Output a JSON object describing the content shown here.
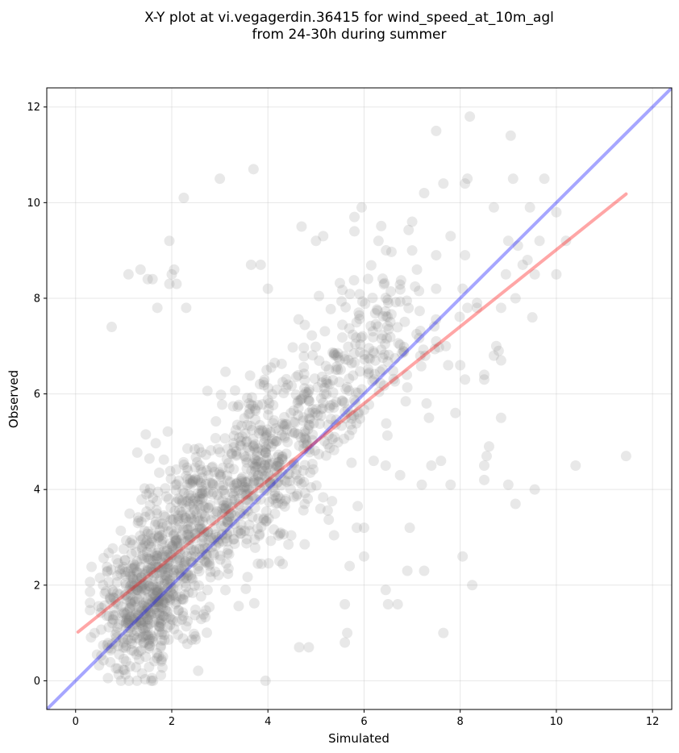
{
  "chart_data": {
    "type": "scatter",
    "title": "X-Y plot at vi.vegagerdin.36415 for wind_speed_at_10m_agl",
    "subtitle": "from 24-30h during summer",
    "xlabel": "Simulated",
    "ylabel": "Observed",
    "xlim": [
      -0.6,
      12.4
    ],
    "ylim": [
      -0.6,
      12.4
    ],
    "xticks": [
      0,
      2,
      4,
      6,
      8,
      10,
      12
    ],
    "yticks": [
      0,
      2,
      4,
      6,
      8,
      10,
      12
    ],
    "grid": true,
    "point_color": "#808080",
    "identity_line": {
      "color": "#0000ff",
      "from": [
        -0.6,
        -0.6
      ],
      "to": [
        12.4,
        12.4
      ]
    },
    "fit_line": {
      "color": "#ff0000",
      "from": [
        0.05,
        1.02
      ],
      "to": [
        11.45,
        10.18
      ]
    },
    "points": [
      [
        11.45,
        4.7
      ],
      [
        10.4,
        4.5
      ],
      [
        9.55,
        4.0
      ],
      [
        9.15,
        3.7
      ],
      [
        8.25,
        2.0
      ],
      [
        8.05,
        2.6
      ],
      [
        7.65,
        1.0
      ],
      [
        6.95,
        3.2
      ],
      [
        7.6,
        4.6
      ],
      [
        7.8,
        4.1
      ],
      [
        8.5,
        4.2
      ],
      [
        8.55,
        4.7
      ],
      [
        8.6,
        4.9
      ],
      [
        9.0,
        4.1
      ],
      [
        8.5,
        4.5
      ],
      [
        7.4,
        4.5
      ],
      [
        6.7,
        1.6
      ],
      [
        6.5,
        1.6
      ],
      [
        6.45,
        1.9
      ],
      [
        6.9,
        2.3
      ],
      [
        7.25,
        2.3
      ],
      [
        7.2,
        4.1
      ],
      [
        6.75,
        4.3
      ],
      [
        6.45,
        4.5
      ],
      [
        6.2,
        4.6
      ],
      [
        6.0,
        3.2
      ],
      [
        5.85,
        3.2
      ],
      [
        6.0,
        2.6
      ],
      [
        5.7,
        2.4
      ],
      [
        5.6,
        1.6
      ],
      [
        5.6,
        0.8
      ],
      [
        5.65,
        1.0
      ],
      [
        4.85,
        0.7
      ],
      [
        4.65,
        0.7
      ],
      [
        3.95,
        0.0
      ],
      [
        7.0,
        9.6
      ],
      [
        7.5,
        11.5
      ],
      [
        8.2,
        11.8
      ],
      [
        9.05,
        11.4
      ],
      [
        8.1,
        10.4
      ],
      [
        8.15,
        10.5
      ],
      [
        9.1,
        10.5
      ],
      [
        9.75,
        10.5
      ],
      [
        7.65,
        10.4
      ],
      [
        7.25,
        10.2
      ],
      [
        10.0,
        9.8
      ],
      [
        9.65,
        9.2
      ],
      [
        10.2,
        9.2
      ],
      [
        9.45,
        9.9
      ],
      [
        8.7,
        9.9
      ],
      [
        9.2,
        9.1
      ],
      [
        9.55,
        8.5
      ],
      [
        10.0,
        8.5
      ],
      [
        8.95,
        8.5
      ],
      [
        9.0,
        9.2
      ],
      [
        8.1,
        8.9
      ],
      [
        7.5,
        8.9
      ],
      [
        7.0,
        9.0
      ],
      [
        7.1,
        8.6
      ],
      [
        7.8,
        9.3
      ],
      [
        6.3,
        9.2
      ],
      [
        5.95,
        9.9
      ],
      [
        5.8,
        9.4
      ],
      [
        5.8,
        9.7
      ],
      [
        5.15,
        9.3
      ],
      [
        4.7,
        9.5
      ],
      [
        5.0,
        9.2
      ],
      [
        3.0,
        10.5
      ],
      [
        3.7,
        10.7
      ],
      [
        2.25,
        10.1
      ],
      [
        1.95,
        9.2
      ],
      [
        1.1,
        8.5
      ],
      [
        1.35,
        8.6
      ],
      [
        1.5,
        8.4
      ],
      [
        1.6,
        8.4
      ],
      [
        2.0,
        8.5
      ],
      [
        2.1,
        8.3
      ],
      [
        2.05,
        8.6
      ],
      [
        1.95,
        8.3
      ],
      [
        3.65,
        8.7
      ],
      [
        3.85,
        8.7
      ],
      [
        4.0,
        8.2
      ],
      [
        0.75,
        7.4
      ],
      [
        1.7,
        7.8
      ],
      [
        2.3,
        7.8
      ],
      [
        9.5,
        7.6
      ],
      [
        9.15,
        8.0
      ],
      [
        9.3,
        8.7
      ],
      [
        9.4,
        8.8
      ],
      [
        8.85,
        7.8
      ],
      [
        8.05,
        8.2
      ],
      [
        8.35,
        7.9
      ],
      [
        8.35,
        7.8
      ],
      [
        8.15,
        7.8
      ],
      [
        7.7,
        7.0
      ],
      [
        7.75,
        6.6
      ],
      [
        8.0,
        6.6
      ],
      [
        8.1,
        6.3
      ],
      [
        8.5,
        6.4
      ],
      [
        8.5,
        6.3
      ],
      [
        8.75,
        7.0
      ],
      [
        8.7,
        6.8
      ],
      [
        8.8,
        6.9
      ],
      [
        8.85,
        6.7
      ],
      [
        7.9,
        5.6
      ],
      [
        7.3,
        5.8
      ],
      [
        7.35,
        5.5
      ],
      [
        8.85,
        5.5
      ],
      [
        7.5,
        7.1
      ],
      [
        7.5,
        8.2
      ]
    ]
  }
}
